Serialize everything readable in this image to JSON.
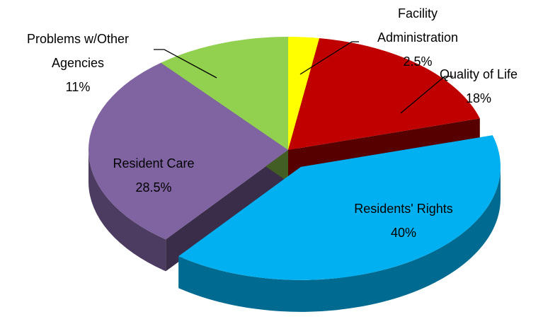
{
  "chart_data": {
    "type": "pie",
    "categories": [
      "Facility Administration",
      "Quality of Life",
      "Residents' Rights",
      "Resident Care",
      "Problems w/Other Agencies"
    ],
    "values": [
      2.5,
      18,
      40,
      28.5,
      11
    ],
    "value_labels": [
      "2.5%",
      "18%",
      "40%",
      "28.5%",
      "11%"
    ],
    "colors": [
      "#ffff00",
      "#c00000",
      "#00b0f0",
      "#8064a2",
      "#92d050"
    ],
    "explode": [
      false,
      false,
      true,
      false,
      false
    ],
    "style": "3d"
  }
}
